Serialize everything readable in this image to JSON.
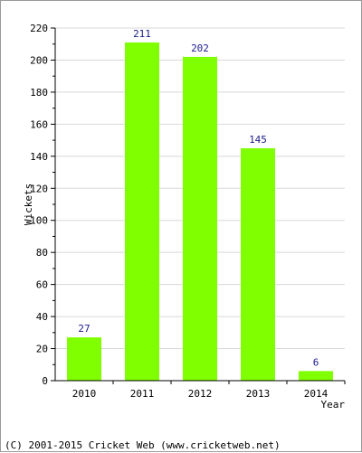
{
  "chart_data": {
    "type": "bar",
    "categories": [
      "2010",
      "2011",
      "2012",
      "2013",
      "2014"
    ],
    "values": [
      27,
      211,
      202,
      145,
      6
    ],
    "xlabel": "Year",
    "ylabel": "Wickets",
    "ylim": [
      0,
      220
    ],
    "yticks": [
      0,
      20,
      40,
      60,
      80,
      100,
      120,
      140,
      160,
      180,
      200,
      220
    ],
    "grid": true,
    "bar_color": "#7fff00",
    "value_label_color": "#1a1a8c"
  },
  "footer": {
    "copyright": "(C) 2001-2015 Cricket Web (www.cricketweb.net)"
  }
}
